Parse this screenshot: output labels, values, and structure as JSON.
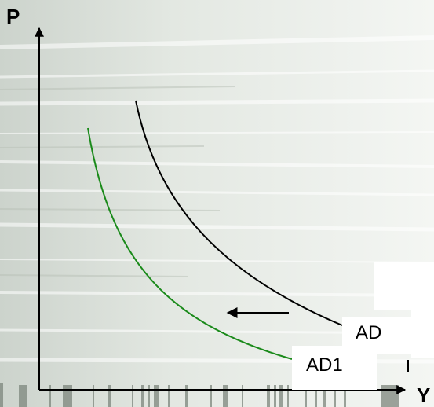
{
  "diagram": {
    "axes": {
      "y_label": "P",
      "x_label": "Y"
    },
    "curves": [
      {
        "name": "AD",
        "color": "#000000"
      },
      {
        "name": "AD1",
        "color": "#1a8a1a"
      }
    ],
    "shift_arrow": {
      "direction": "left",
      "color": "#000000"
    }
  }
}
